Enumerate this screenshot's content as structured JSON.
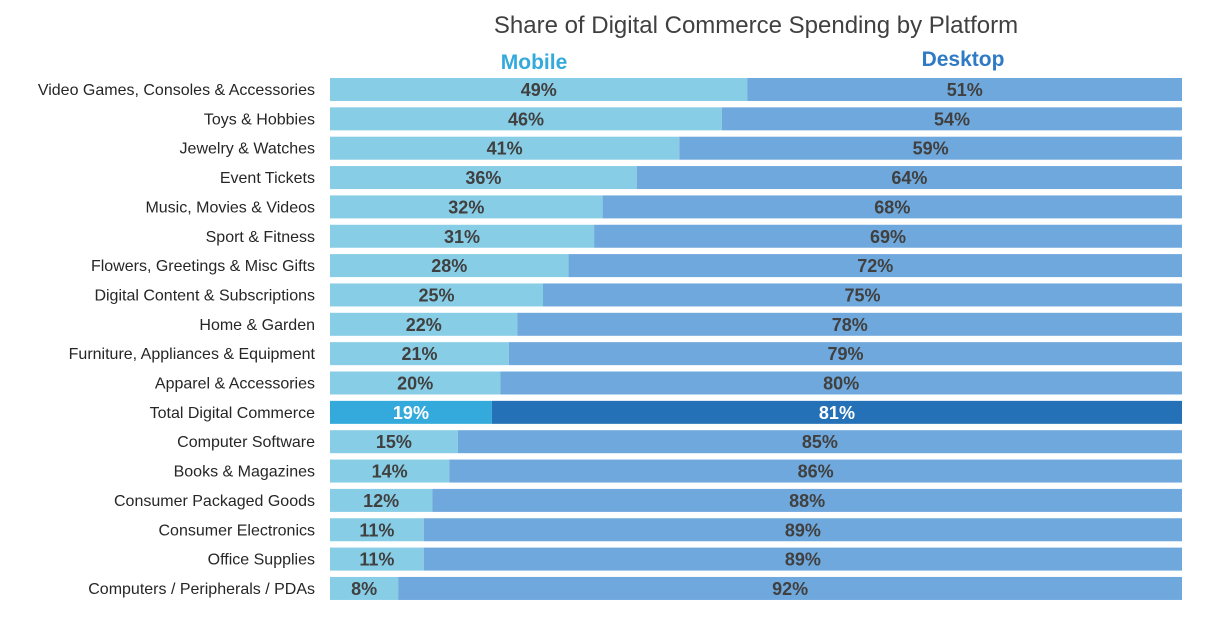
{
  "chart_data": {
    "type": "bar",
    "orientation": "horizontal",
    "stacked": true,
    "normalized": true,
    "title": "Share of Digital Commerce Spending by Platform",
    "xlabel": "",
    "ylabel": "",
    "xlim": [
      0,
      100
    ],
    "grid": false,
    "legend": "top, series names above columns",
    "highlight_category": "Total Digital Commerce",
    "categories": [
      "Video Games, Consoles & Accessories",
      "Toys & Hobbies",
      "Jewelry & Watches",
      "Event Tickets",
      "Music, Movies & Videos",
      "Sport & Fitness",
      "Flowers, Greetings & Misc Gifts",
      "Digital Content & Subscriptions",
      "Home & Garden",
      "Furniture, Appliances & Equipment",
      "Apparel & Accessories",
      "Total Digital Commerce",
      "Computer Software",
      "Books & Magazines",
      "Consumer Packaged Goods",
      "Consumer Electronics",
      "Office Supplies",
      "Computers / Peripherals / PDAs"
    ],
    "series": [
      {
        "name": "Mobile",
        "color": "#87cde6",
        "highlight_color": "#33aadb",
        "label_color": "#33aadb",
        "values": [
          49,
          46,
          41,
          36,
          32,
          31,
          28,
          25,
          22,
          21,
          20,
          19,
          15,
          14,
          12,
          11,
          11,
          8
        ]
      },
      {
        "name": "Desktop",
        "color": "#6fa8dc",
        "highlight_color": "#2471b8",
        "label_color": "#2f7ac4",
        "values": [
          51,
          54,
          59,
          64,
          68,
          69,
          72,
          75,
          78,
          79,
          80,
          81,
          85,
          86,
          88,
          89,
          89,
          92
        ]
      }
    ]
  }
}
